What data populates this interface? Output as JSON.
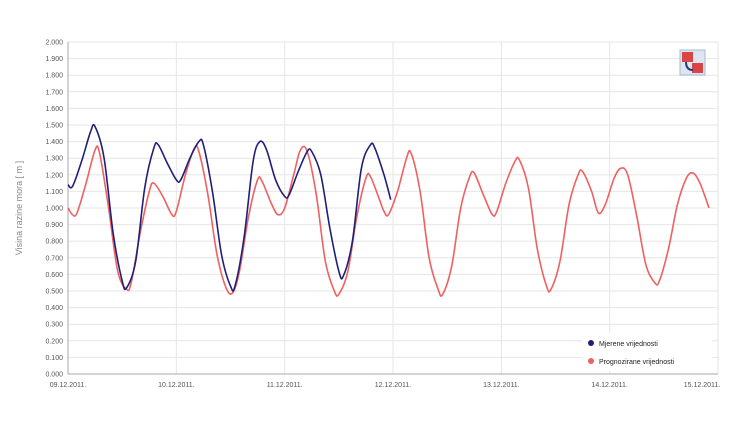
{
  "chart_data": {
    "type": "line",
    "ylabel": "Visina razine mora [ m ]",
    "ylim": [
      0,
      2
    ],
    "yticks": [
      "2.000",
      "1.900",
      "1.800",
      "1.700",
      "1.600",
      "1.500",
      "1.400",
      "1.300",
      "1.200",
      "1.100",
      "1.000",
      "0.900",
      "0.800",
      "0.700",
      "0.600",
      "0.500",
      "0.400",
      "0.300",
      "0.200",
      "0.100",
      "0.000"
    ],
    "xlim": [
      "2011-12-09",
      "2011-12-15"
    ],
    "xticks": [
      "09.12.2011.",
      "10.12.2011.",
      "11.12.2011.",
      "12.12.2011.",
      "13.12.2011.",
      "14.12.2011.",
      "15.12.2011."
    ],
    "grid": true,
    "legend_position": "bottom-right",
    "series": [
      {
        "name": "Mjerene vrijednosti",
        "color": "#1f1f7a",
        "points": [
          [
            "2011-12-09 00:00",
            1.14
          ],
          [
            "2011-12-09 01:00",
            1.13
          ],
          [
            "2011-12-09 03:00",
            1.28
          ],
          [
            "2011-12-09 05:00",
            1.46
          ],
          [
            "2011-12-09 06:00",
            1.49
          ],
          [
            "2011-12-09 08:00",
            1.3
          ],
          [
            "2011-12-09 10:00",
            0.85
          ],
          [
            "2011-12-09 12:00",
            0.56
          ],
          [
            "2011-12-09 13:00",
            0.52
          ],
          [
            "2011-12-09 15:00",
            0.68
          ],
          [
            "2011-12-09 17:00",
            1.12
          ],
          [
            "2011-12-09 19:00",
            1.36
          ],
          [
            "2011-12-09 20:00",
            1.38
          ],
          [
            "2011-12-09 22:00",
            1.27
          ],
          [
            "2011-12-10 00:00",
            1.17
          ],
          [
            "2011-12-10 01:00",
            1.17
          ],
          [
            "2011-12-10 03:00",
            1.3
          ],
          [
            "2011-12-10 05:00",
            1.4
          ],
          [
            "2011-12-10 06:00",
            1.38
          ],
          [
            "2011-12-10 08:00",
            1.1
          ],
          [
            "2011-12-10 10:00",
            0.72
          ],
          [
            "2011-12-10 12:00",
            0.53
          ],
          [
            "2011-12-10 13:00",
            0.53
          ],
          [
            "2011-12-10 15:00",
            0.82
          ],
          [
            "2011-12-10 17:00",
            1.28
          ],
          [
            "2011-12-10 18:30",
            1.4
          ],
          [
            "2011-12-10 20:00",
            1.35
          ],
          [
            "2011-12-10 22:00",
            1.17
          ],
          [
            "2011-12-11 00:00",
            1.07
          ],
          [
            "2011-12-11 01:00",
            1.08
          ],
          [
            "2011-12-11 03:00",
            1.22
          ],
          [
            "2011-12-11 05:00",
            1.34
          ],
          [
            "2011-12-11 06:00",
            1.34
          ],
          [
            "2011-12-11 08:00",
            1.2
          ],
          [
            "2011-12-11 10:00",
            0.88
          ],
          [
            "2011-12-11 12:00",
            0.62
          ],
          [
            "2011-12-11 13:00",
            0.59
          ],
          [
            "2011-12-11 15:00",
            0.8
          ],
          [
            "2011-12-11 17:00",
            1.24
          ],
          [
            "2011-12-11 19:00",
            1.38
          ],
          [
            "2011-12-11 20:00",
            1.36
          ],
          [
            "2011-12-11 22:00",
            1.2
          ],
          [
            "2011-12-11 23:30",
            1.05
          ]
        ]
      },
      {
        "name": "Prognozirane vrijednosti",
        "color": "#f06060",
        "points": [
          [
            "2011-12-09 00:00",
            1.0
          ],
          [
            "2011-12-09 01:00",
            0.96
          ],
          [
            "2011-12-09 02:00",
            0.97
          ],
          [
            "2011-12-09 04:00",
            1.15
          ],
          [
            "2011-12-09 06:00",
            1.35
          ],
          [
            "2011-12-09 07:00",
            1.33
          ],
          [
            "2011-12-09 09:00",
            1.0
          ],
          [
            "2011-12-09 11:00",
            0.62
          ],
          [
            "2011-12-09 13:00",
            0.51
          ],
          [
            "2011-12-09 14:00",
            0.55
          ],
          [
            "2011-12-09 16:00",
            0.85
          ],
          [
            "2011-12-09 18:00",
            1.1
          ],
          [
            "2011-12-09 19:00",
            1.15
          ],
          [
            "2011-12-09 21:00",
            1.07
          ],
          [
            "2011-12-09 23:00",
            0.96
          ],
          [
            "2011-12-10 00:00",
            0.98
          ],
          [
            "2011-12-10 02:00",
            1.2
          ],
          [
            "2011-12-10 04:00",
            1.36
          ],
          [
            "2011-12-10 05:00",
            1.34
          ],
          [
            "2011-12-10 07:00",
            1.08
          ],
          [
            "2011-12-10 09:00",
            0.72
          ],
          [
            "2011-12-10 11:00",
            0.52
          ],
          [
            "2011-12-10 12:30",
            0.49
          ],
          [
            "2011-12-10 14:00",
            0.62
          ],
          [
            "2011-12-10 16:00",
            0.95
          ],
          [
            "2011-12-10 18:00",
            1.17
          ],
          [
            "2011-12-10 19:00",
            1.16
          ],
          [
            "2011-12-10 21:00",
            1.03
          ],
          [
            "2011-12-10 22:30",
            0.96
          ],
          [
            "2011-12-11 00:00",
            1.0
          ],
          [
            "2011-12-11 02:00",
            1.2
          ],
          [
            "2011-12-11 03:30",
            1.35
          ],
          [
            "2011-12-11 05:00",
            1.34
          ],
          [
            "2011-12-11 07:00",
            1.08
          ],
          [
            "2011-12-11 09:00",
            0.68
          ],
          [
            "2011-12-11 11:00",
            0.5
          ],
          [
            "2011-12-11 12:00",
            0.48
          ],
          [
            "2011-12-11 14:00",
            0.62
          ],
          [
            "2011-12-11 16:00",
            0.95
          ],
          [
            "2011-12-11 18:00",
            1.18
          ],
          [
            "2011-12-11 19:00",
            1.19
          ],
          [
            "2011-12-11 21:00",
            1.05
          ],
          [
            "2011-12-11 22:00",
            0.98
          ],
          [
            "2011-12-11 23:00",
            0.96
          ],
          [
            "2011-12-12 01:00",
            1.1
          ],
          [
            "2011-12-12 03:00",
            1.3
          ],
          [
            "2011-12-12 04:00",
            1.33
          ],
          [
            "2011-12-12 06:00",
            1.1
          ],
          [
            "2011-12-12 08:00",
            0.7
          ],
          [
            "2011-12-12 10:00",
            0.51
          ],
          [
            "2011-12-12 11:00",
            0.48
          ],
          [
            "2011-12-12 13:00",
            0.65
          ],
          [
            "2011-12-12 15:00",
            1.0
          ],
          [
            "2011-12-12 17:00",
            1.19
          ],
          [
            "2011-12-12 18:00",
            1.21
          ],
          [
            "2011-12-12 20:00",
            1.08
          ],
          [
            "2011-12-12 22:00",
            0.96
          ],
          [
            "2011-12-12 23:00",
            0.98
          ],
          [
            "2011-12-13 01:00",
            1.15
          ],
          [
            "2011-12-13 03:00",
            1.28
          ],
          [
            "2011-12-13 04:00",
            1.29
          ],
          [
            "2011-12-13 06:00",
            1.12
          ],
          [
            "2011-12-13 08:00",
            0.75
          ],
          [
            "2011-12-13 10:00",
            0.53
          ],
          [
            "2011-12-13 11:00",
            0.51
          ],
          [
            "2011-12-13 13:00",
            0.68
          ],
          [
            "2011-12-13 15:00",
            1.02
          ],
          [
            "2011-12-13 17:00",
            1.2
          ],
          [
            "2011-12-13 18:00",
            1.22
          ],
          [
            "2011-12-13 20:00",
            1.1
          ],
          [
            "2011-12-13 21:30",
            0.97
          ],
          [
            "2011-12-13 23:00",
            1.02
          ],
          [
            "2011-12-14 01:00",
            1.18
          ],
          [
            "2011-12-14 02:30",
            1.24
          ],
          [
            "2011-12-14 04:00",
            1.2
          ],
          [
            "2011-12-14 06:00",
            0.95
          ],
          [
            "2011-12-14 08:00",
            0.66
          ],
          [
            "2011-12-14 10:00",
            0.55
          ],
          [
            "2011-12-14 11:00",
            0.56
          ],
          [
            "2011-12-14 13:00",
            0.75
          ],
          [
            "2011-12-14 15:00",
            1.02
          ],
          [
            "2011-12-14 17:00",
            1.18
          ],
          [
            "2011-12-14 18:30",
            1.21
          ],
          [
            "2011-12-14 20:00",
            1.15
          ],
          [
            "2011-12-14 22:00",
            1.0
          ]
        ]
      }
    ]
  }
}
